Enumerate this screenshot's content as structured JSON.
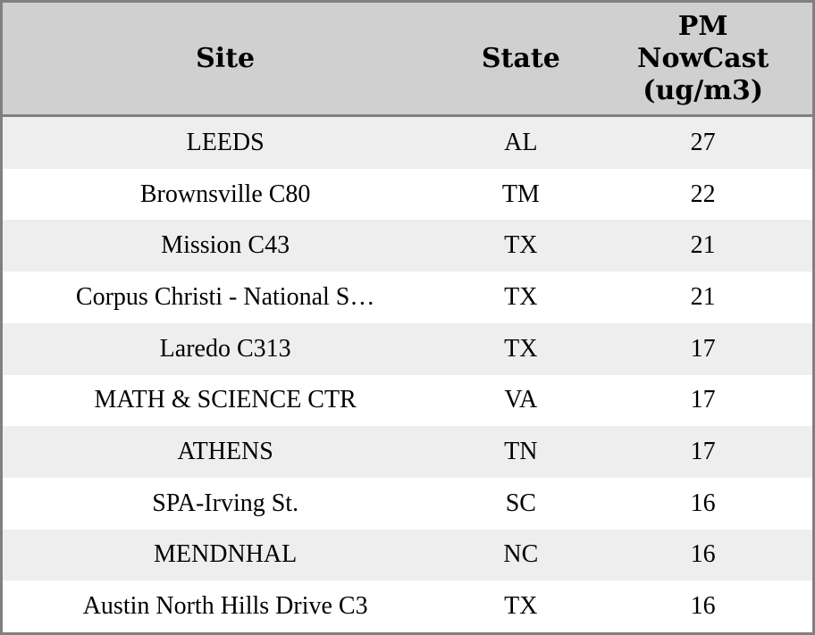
{
  "colors": {
    "border": "#808080",
    "header_bg": "#d0d0d0",
    "alt_row_bg": "#eeeeee",
    "row_bg": "#ffffff",
    "text": "#000000"
  },
  "header": {
    "site": "Site",
    "state": "State",
    "pm": "PM\nNowCast\n(ug/m3)"
  },
  "rows": [
    {
      "site": "LEEDS",
      "state": "AL",
      "pm": "27"
    },
    {
      "site": "Brownsville C80",
      "state": "TM",
      "pm": "22"
    },
    {
      "site": "Mission C43",
      "state": "TX",
      "pm": "21"
    },
    {
      "site": "Corpus Christi - National S…",
      "state": "TX",
      "pm": "21"
    },
    {
      "site": "Laredo C313",
      "state": "TX",
      "pm": "17"
    },
    {
      "site": "MATH & SCIENCE CTR",
      "state": "VA",
      "pm": "17"
    },
    {
      "site": "ATHENS",
      "state": "TN",
      "pm": "17"
    },
    {
      "site": "SPA-Irving St.",
      "state": "SC",
      "pm": "16"
    },
    {
      "site": "MENDNHAL",
      "state": "NC",
      "pm": "16"
    },
    {
      "site": "Austin North Hills Drive C3",
      "state": "TX",
      "pm": "16"
    }
  ],
  "chart_data": {
    "type": "table",
    "columns": [
      "Site",
      "State",
      "PM NowCast (ug/m3)"
    ],
    "rows": [
      [
        "LEEDS",
        "AL",
        27
      ],
      [
        "Brownsville C80",
        "TM",
        22
      ],
      [
        "Mission C43",
        "TX",
        21
      ],
      [
        "Corpus Christi - National S…",
        "TX",
        21
      ],
      [
        "Laredo C313",
        "TX",
        17
      ],
      [
        "MATH & SCIENCE CTR",
        "VA",
        17
      ],
      [
        "ATHENS",
        "TN",
        17
      ],
      [
        "SPA-Irving St.",
        "SC",
        16
      ],
      [
        "MENDNHAL",
        "NC",
        16
      ],
      [
        "Austin North Hills Drive C3",
        "TX",
        16
      ]
    ]
  }
}
